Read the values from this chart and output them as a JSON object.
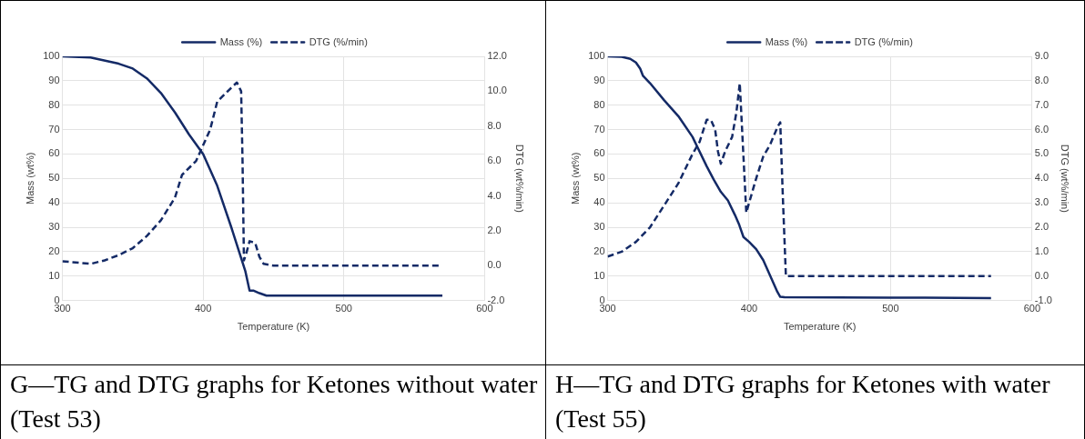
{
  "chart_data": [
    {
      "type": "line",
      "xlabel": "Temperature (K)",
      "ylabel": "Mass (wt%)",
      "y2label": "DTG (wt%/min)",
      "xlim": [
        300,
        600
      ],
      "xticks": [
        300,
        400,
        500,
        600
      ],
      "ylim": [
        0,
        100
      ],
      "yticks": [
        0,
        10,
        20,
        30,
        40,
        50,
        60,
        70,
        80,
        90,
        100
      ],
      "y2lim": [
        -2,
        12
      ],
      "y2ticks": [
        {
          "value": -2,
          "label": "-2.0"
        },
        {
          "value": 0,
          "label": "0.0"
        },
        {
          "value": 2,
          "label": "2.0"
        },
        {
          "value": 4,
          "label": "4.0"
        },
        {
          "value": 6,
          "label": "6.0"
        },
        {
          "value": 8,
          "label": "8.0"
        },
        {
          "value": 10,
          "label": "10.0"
        },
        {
          "value": 12,
          "label": "12.0"
        }
      ],
      "grid": true,
      "legend": "top",
      "marker": "none",
      "annotations": [
        "G—TG and DTG graphs for Ketones without water (Test 53)"
      ],
      "series": [
        {
          "name": "Mass (%)",
          "color": "#142a66",
          "line_style": "solid",
          "axis": "y",
          "x": [
            300,
            320,
            340,
            350,
            360,
            370,
            380,
            390,
            400,
            410,
            420,
            430,
            433,
            436,
            440,
            445,
            450,
            500,
            570
          ],
          "values": [
            100,
            99.5,
            97,
            95,
            91,
            85,
            77,
            68,
            60,
            47,
            30,
            12,
            4,
            4,
            3,
            2,
            2,
            2,
            2
          ]
        },
        {
          "name": "DTG (%/min)",
          "color": "#142a66",
          "line_style": "dashed",
          "axis": "y2",
          "x": [
            300,
            320,
            330,
            340,
            350,
            360,
            370,
            380,
            385,
            395,
            400,
            405,
            410,
            415,
            420,
            424,
            427,
            428,
            429,
            431,
            433,
            437,
            440,
            443,
            450,
            500,
            568
          ],
          "values": [
            0.25,
            0.1,
            0.3,
            0.6,
            1,
            1.7,
            2.6,
            3.9,
            5.2,
            6,
            6.9,
            7.8,
            9.4,
            9.8,
            10.2,
            10.5,
            10,
            6,
            0.3,
            0.8,
            1.4,
            1.3,
            0.5,
            0.1,
            0,
            0,
            0
          ]
        }
      ]
    },
    {
      "type": "line",
      "xlabel": "Temperature (K)",
      "ylabel": "Mass (wt%)",
      "y2label": "DTG (wt%/min)",
      "xlim": [
        300,
        600
      ],
      "xticks": [
        300,
        400,
        500,
        600
      ],
      "ylim": [
        0,
        100
      ],
      "yticks": [
        0,
        10,
        20,
        30,
        40,
        50,
        60,
        70,
        80,
        90,
        100
      ],
      "y2lim": [
        -1,
        9
      ],
      "y2ticks": [
        {
          "value": -1,
          "label": "-1.0"
        },
        {
          "value": 0,
          "label": "0.0"
        },
        {
          "value": 1,
          "label": "1.0"
        },
        {
          "value": 2,
          "label": "2.0"
        },
        {
          "value": 3,
          "label": "3.0"
        },
        {
          "value": 4,
          "label": "4.0"
        },
        {
          "value": 5,
          "label": "5.0"
        },
        {
          "value": 6,
          "label": "6.0"
        },
        {
          "value": 7,
          "label": "7.0"
        },
        {
          "value": 8,
          "label": "8.0"
        },
        {
          "value": 9,
          "label": "9.0"
        }
      ],
      "grid": true,
      "legend": "top",
      "marker": "none",
      "annotations": [
        "H—TG and DTG graphs for Ketones with water (Test 55)"
      ],
      "series": [
        {
          "name": "Mass (%)",
          "color": "#142a66",
          "line_style": "solid",
          "axis": "y",
          "x": [
            300,
            310,
            316,
            320,
            323,
            325,
            330,
            340,
            350,
            360,
            370,
            375,
            380,
            385,
            390,
            393,
            396,
            400,
            405,
            410,
            415,
            420,
            422,
            425,
            500,
            571
          ],
          "values": [
            100,
            99.8,
            99,
            97.5,
            95,
            92,
            89,
            82,
            75.5,
            67,
            55,
            49.5,
            44.5,
            41,
            35,
            31,
            26,
            24,
            21,
            16.5,
            10,
            3.5,
            1.5,
            1.3,
            1.2,
            1
          ]
        },
        {
          "name": "DTG (%/min)",
          "color": "#142a66",
          "line_style": "dashed",
          "axis": "y2",
          "x": [
            300,
            310,
            320,
            330,
            340,
            350,
            360,
            365,
            370,
            373,
            376,
            378,
            380,
            383,
            388,
            391,
            393.4,
            398,
            400,
            405,
            410,
            415,
            420,
            422,
            424,
            426,
            500,
            571
          ],
          "values": [
            0.8,
            1,
            1.4,
            2,
            2.9,
            3.8,
            5,
            5.5,
            6.4,
            6.4,
            6,
            5.1,
            4.6,
            5.1,
            5.7,
            6.7,
            7.9,
            2.6,
            3,
            4,
            4.9,
            5.4,
            6.1,
            6.3,
            3,
            0,
            0,
            0
          ]
        }
      ]
    }
  ]
}
